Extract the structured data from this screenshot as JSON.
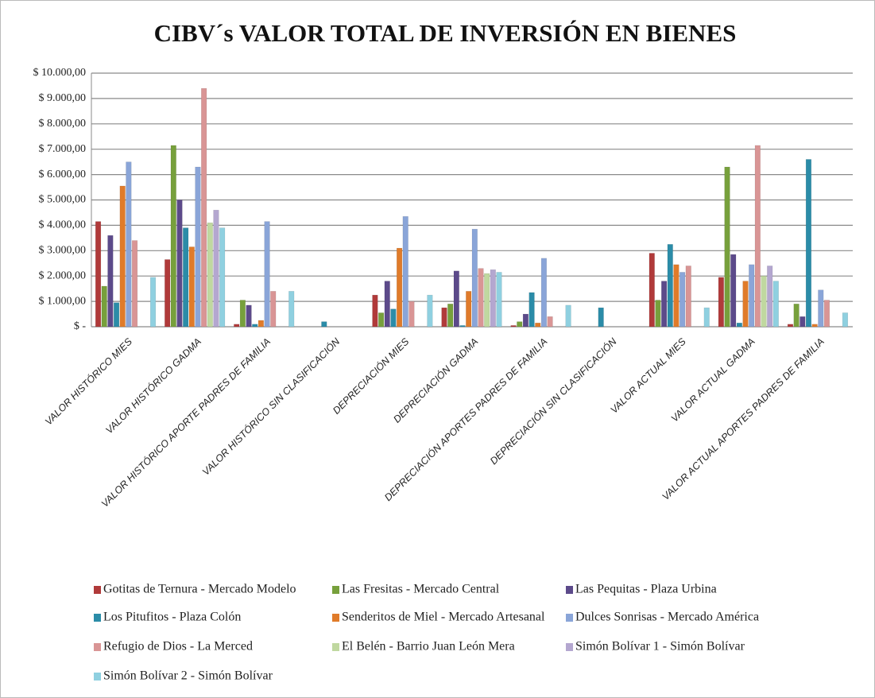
{
  "chart_data": {
    "type": "bar",
    "title": "CIBV´s VALOR TOTAL DE INVERSIÓN EN BIENES",
    "categories": [
      "VALOR HISTÓRICO MIES",
      "VALOR HISTÓRICO GADMA",
      "VALOR HISTÓRICO APORTE PADRES DE FAMILIA",
      "VALOR HISTÓRICO SIN CLASIFICACIÓN",
      "DEPRECIACIÓN MIES",
      "DEPRECIACIÓN GADMA",
      "DEPRECIACIÓN APORTES PADRES DE FAMILIA",
      "DEPRECIACIÓN SIN CLASIFICACIÓN",
      "VALOR ACTUAL MIES",
      "VALOR ACTUAL GADMA",
      "VALOR ACTUAL APORTES PADRES DE FAMILIA"
    ],
    "series": [
      {
        "name": "Gotitas de Ternura - Mercado Modelo",
        "color": "#b03a3a",
        "values": [
          4150,
          2650,
          100,
          0,
          1250,
          750,
          50,
          0,
          2900,
          1950,
          100
        ]
      },
      {
        "name": "Las Fresitas - Mercado Central",
        "color": "#77a03c",
        "values": [
          1600,
          7150,
          1050,
          0,
          550,
          900,
          200,
          0,
          1050,
          6300,
          900
        ]
      },
      {
        "name": "Las Pequitas - Plaza Urbina",
        "color": "#5c4a8a",
        "values": [
          3600,
          5000,
          850,
          0,
          1800,
          2200,
          500,
          0,
          1800,
          2850,
          400
        ]
      },
      {
        "name": "Los Pitufitos - Plaza Colón",
        "color": "#2b8ca8",
        "values": [
          950,
          3900,
          100,
          200,
          700,
          50,
          1350,
          750,
          3250,
          150,
          6600
        ]
      },
      {
        "name": "Senderitos de Miel - Mercado Artesanal",
        "color": "#e07b2a",
        "values": [
          5550,
          3150,
          250,
          0,
          3100,
          1400,
          150,
          0,
          2450,
          1800,
          100
        ]
      },
      {
        "name": "Dulces Sonrisas - Mercado América",
        "color": "#8aa5d8",
        "values": [
          6500,
          6300,
          4150,
          0,
          4350,
          3850,
          2700,
          0,
          2150,
          2450,
          1450
        ]
      },
      {
        "name": "Refugio de Dios - La Merced",
        "color": "#d99595",
        "values": [
          3400,
          9400,
          1400,
          0,
          1000,
          2300,
          400,
          0,
          2400,
          7150,
          1050
        ]
      },
      {
        "name": "El Belén - Barrio Juan León Mera",
        "color": "#c0d8a0",
        "values": [
          0,
          4100,
          0,
          0,
          0,
          2100,
          0,
          0,
          0,
          2000,
          0
        ]
      },
      {
        "name": "Simón Bolívar 1 - Simón Bolívar",
        "color": "#b4a7d0",
        "values": [
          0,
          4600,
          0,
          0,
          0,
          2250,
          0,
          0,
          0,
          2400,
          0
        ]
      },
      {
        "name": "Simón Bolívar 2 - Simón Bolívar",
        "color": "#8fd0e0",
        "values": [
          1950,
          3900,
          1400,
          0,
          1250,
          2150,
          850,
          0,
          750,
          1800,
          550
        ]
      }
    ],
    "ylim": [
      0,
      10000
    ],
    "yticks": [
      {
        "value": 0,
        "label": "$ -"
      },
      {
        "value": 1000,
        "label": "$ 1.000,00"
      },
      {
        "value": 2000,
        "label": "$ 2.000,00"
      },
      {
        "value": 3000,
        "label": "$ 3.000,00"
      },
      {
        "value": 4000,
        "label": "$ 4.000,00"
      },
      {
        "value": 5000,
        "label": "$ 5.000,00"
      },
      {
        "value": 6000,
        "label": "$ 6.000,00"
      },
      {
        "value": 7000,
        "label": "$ 7.000,00"
      },
      {
        "value": 8000,
        "label": "$ 8.000,00"
      },
      {
        "value": 9000,
        "label": "$ 9.000,00"
      },
      {
        "value": 10000,
        "label": "$ 10.000,00"
      }
    ],
    "grid": true,
    "legend": "bottom"
  }
}
